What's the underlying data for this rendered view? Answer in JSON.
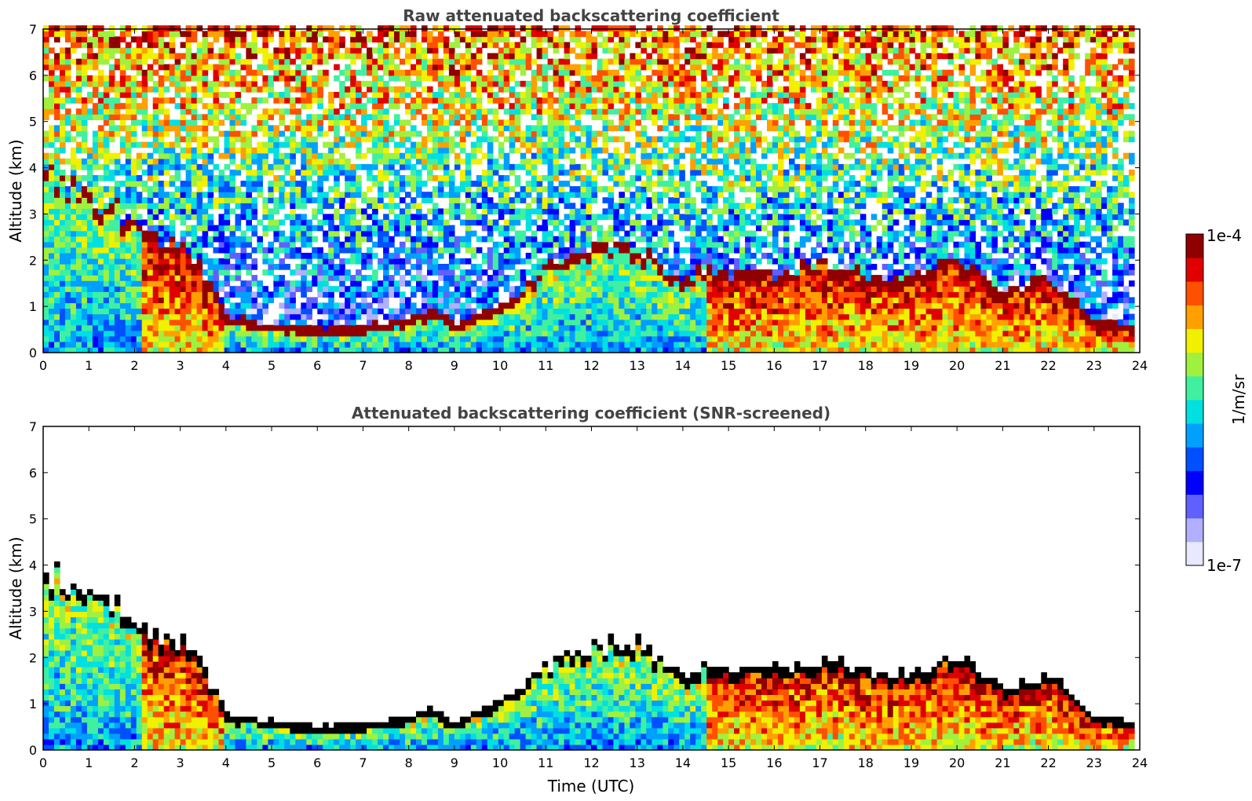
{
  "chart_data": [
    {
      "type": "heatmap",
      "title": "Raw attenuated backscattering coefficient",
      "xlabel": "",
      "ylabel": "Altitude (km)",
      "xlim": [
        0,
        24
      ],
      "ylim": [
        0,
        7
      ],
      "xticks": [
        "0",
        "1",
        "2",
        "3",
        "4",
        "5",
        "6",
        "7",
        "8",
        "9",
        "10",
        "11",
        "12",
        "13",
        "14",
        "15",
        "16",
        "17",
        "18",
        "19",
        "20",
        "21",
        "22",
        "23",
        "24"
      ],
      "yticks": [
        "0",
        "1",
        "2",
        "3",
        "4",
        "5",
        "6",
        "7"
      ],
      "data_end_hour": 23.8,
      "layer_top_km": [
        {
          "x": 0,
          "y": 3.6
        },
        {
          "x": 0.5,
          "y": 3.5
        },
        {
          "x": 1,
          "y": 3.1
        },
        {
          "x": 1.6,
          "y": 2.9
        },
        {
          "x": 2.2,
          "y": 2.3
        },
        {
          "x": 3.2,
          "y": 2.0
        },
        {
          "x": 3.7,
          "y": 1.2
        },
        {
          "x": 4,
          "y": 0.55
        },
        {
          "x": 5,
          "y": 0.4
        },
        {
          "x": 6,
          "y": 0.3
        },
        {
          "x": 7,
          "y": 0.35
        },
        {
          "x": 8,
          "y": 0.5
        },
        {
          "x": 8.5,
          "y": 0.7
        },
        {
          "x": 9,
          "y": 0.4
        },
        {
          "x": 10,
          "y": 0.8
        },
        {
          "x": 11,
          "y": 1.6
        },
        {
          "x": 12,
          "y": 2.0
        },
        {
          "x": 13,
          "y": 2.1
        },
        {
          "x": 14,
          "y": 1.3
        },
        {
          "x": 14.5,
          "y": 1.6
        },
        {
          "x": 15,
          "y": 1.5
        },
        {
          "x": 16,
          "y": 1.5
        },
        {
          "x": 17,
          "y": 1.7
        },
        {
          "x": 18,
          "y": 1.5
        },
        {
          "x": 19,
          "y": 1.4
        },
        {
          "x": 20,
          "y": 1.8
        },
        {
          "x": 21,
          "y": 1.1
        },
        {
          "x": 22,
          "y": 1.4
        },
        {
          "x": 22.6,
          "y": 0.9
        },
        {
          "x": 23,
          "y": 0.5
        },
        {
          "x": 23.8,
          "y": 0.4
        }
      ]
    },
    {
      "type": "heatmap",
      "title": "Attenuated backscattering coefficient (SNR-screened)",
      "xlabel": "Time (UTC)",
      "ylabel": "Altitude (km)",
      "xlim": [
        0,
        24
      ],
      "ylim": [
        0,
        7
      ],
      "xticks": [
        "0",
        "1",
        "2",
        "3",
        "4",
        "5",
        "6",
        "7",
        "8",
        "9",
        "10",
        "11",
        "12",
        "13",
        "14",
        "15",
        "16",
        "17",
        "18",
        "19",
        "20",
        "21",
        "22",
        "23",
        "24"
      ],
      "yticks": [
        "0",
        "1",
        "2",
        "3",
        "4",
        "5",
        "6",
        "7"
      ],
      "data_end_hour": 23.8,
      "layer_top_km": [
        {
          "x": 0,
          "y": 3.6
        },
        {
          "x": 0.5,
          "y": 3.5
        },
        {
          "x": 1,
          "y": 3.1
        },
        {
          "x": 1.6,
          "y": 2.9
        },
        {
          "x": 2.2,
          "y": 2.3
        },
        {
          "x": 3.2,
          "y": 2.0
        },
        {
          "x": 3.7,
          "y": 1.2
        },
        {
          "x": 4,
          "y": 0.55
        },
        {
          "x": 5,
          "y": 0.4
        },
        {
          "x": 6,
          "y": 0.3
        },
        {
          "x": 7,
          "y": 0.35
        },
        {
          "x": 8,
          "y": 0.5
        },
        {
          "x": 8.5,
          "y": 0.7
        },
        {
          "x": 9,
          "y": 0.4
        },
        {
          "x": 10,
          "y": 0.8
        },
        {
          "x": 11,
          "y": 1.6
        },
        {
          "x": 12,
          "y": 2.0
        },
        {
          "x": 13,
          "y": 2.1
        },
        {
          "x": 14,
          "y": 1.3
        },
        {
          "x": 14.5,
          "y": 1.6
        },
        {
          "x": 15,
          "y": 1.5
        },
        {
          "x": 16,
          "y": 1.5
        },
        {
          "x": 17,
          "y": 1.7
        },
        {
          "x": 18,
          "y": 1.5
        },
        {
          "x": 19,
          "y": 1.4
        },
        {
          "x": 20,
          "y": 1.8
        },
        {
          "x": 21,
          "y": 1.1
        },
        {
          "x": 22,
          "y": 1.4
        },
        {
          "x": 22.6,
          "y": 0.9
        },
        {
          "x": 23,
          "y": 0.5
        },
        {
          "x": 23.8,
          "y": 0.4
        }
      ]
    }
  ],
  "colorbar": {
    "label": "1/m/sr",
    "max_label": "1e-4",
    "min_label": "1e-7",
    "scale": "log",
    "colors": [
      "#e8e8ff",
      "#b0b0ff",
      "#6060ff",
      "#0000ff",
      "#0050ff",
      "#00a0ff",
      "#00e0e0",
      "#40f0a0",
      "#a0f040",
      "#f0f000",
      "#ffa000",
      "#ff5000",
      "#e00000",
      "#900000"
    ]
  }
}
